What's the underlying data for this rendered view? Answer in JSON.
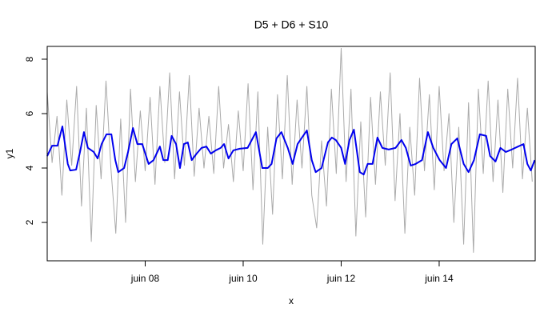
{
  "chart_data": {
    "type": "line",
    "title": "D5 + D6 + S10",
    "x_label": "x",
    "y_label": "y1",
    "xlim": [
      6.0,
      15.96
    ],
    "ylim": [
      0.59,
      8.47
    ],
    "xticks": [
      {
        "value": 8,
        "label": "juin 08"
      },
      {
        "value": 10,
        "label": "juin 10"
      },
      {
        "value": 12,
        "label": "juin 12"
      },
      {
        "value": 14,
        "label": "juin 14"
      }
    ],
    "yticks": [
      2,
      4,
      6,
      8
    ],
    "series": [
      {
        "color": "#aaaaaa",
        "width": 1,
        "x": [
          6.0,
          6.1,
          6.2,
          6.3,
          6.4,
          6.5,
          6.6,
          6.7,
          6.8,
          6.9,
          7.0,
          7.1,
          7.2,
          7.3,
          7.4,
          7.5,
          7.6,
          7.7,
          7.8,
          7.9,
          8.0,
          8.1,
          8.2,
          8.3,
          8.4,
          8.5,
          8.6,
          8.7,
          8.8,
          8.9,
          9.0,
          9.1,
          9.2,
          9.3,
          9.4,
          9.5,
          9.6,
          9.7,
          9.8,
          9.9,
          10.0,
          10.1,
          10.2,
          10.3,
          10.4,
          10.5,
          10.6,
          10.7,
          10.8,
          10.9,
          11.0,
          11.1,
          11.2,
          11.3,
          11.4,
          11.5,
          11.6,
          11.7,
          11.8,
          11.9,
          12.0,
          12.1,
          12.2,
          12.3,
          12.4,
          12.5,
          12.6,
          12.7,
          12.8,
          12.9,
          13.0,
          13.1,
          13.2,
          13.3,
          13.4,
          13.5,
          13.6,
          13.7,
          13.8,
          13.9,
          14.0,
          14.1,
          14.2,
          14.3,
          14.4,
          14.5,
          14.6,
          14.7,
          14.8,
          14.9,
          15.0,
          15.1,
          15.2,
          15.3,
          15.4,
          15.5,
          15.6,
          15.7,
          15.8,
          15.9
        ],
        "values": [
          6.8,
          4.2,
          5.9,
          3.0,
          6.5,
          4.1,
          7.0,
          2.6,
          6.2,
          1.3,
          6.3,
          3.6,
          7.2,
          4.0,
          1.6,
          5.8,
          2.0,
          6.9,
          3.5,
          6.1,
          3.9,
          6.6,
          3.4,
          7.0,
          4.2,
          7.5,
          3.6,
          6.8,
          4.1,
          7.4,
          3.7,
          6.2,
          4.0,
          5.9,
          3.8,
          7.0,
          4.0,
          5.6,
          3.5,
          6.1,
          3.9,
          7.1,
          3.2,
          6.8,
          1.2,
          5.5,
          2.3,
          6.7,
          3.6,
          7.4,
          3.4,
          6.5,
          4.0,
          7.0,
          3.0,
          1.8,
          5.0,
          2.6,
          6.9,
          3.8,
          8.4,
          3.5,
          6.9,
          1.5,
          5.7,
          2.2,
          6.6,
          3.4,
          6.8,
          4.1,
          7.5,
          2.8,
          6.0,
          1.6,
          5.5,
          3.0,
          7.3,
          3.9,
          6.7,
          3.2,
          7.0,
          3.9,
          6.0,
          2.0,
          5.5,
          1.2,
          6.4,
          0.9,
          6.9,
          3.8,
          7.2,
          3.5,
          6.5,
          3.1,
          6.9,
          4.0,
          7.3,
          3.6,
          6.2,
          3.5
        ]
      },
      {
        "color": "#0000ee",
        "width": 2,
        "x": [
          6.0,
          6.1,
          6.21,
          6.31,
          6.42,
          6.47,
          6.59,
          6.67,
          6.75,
          6.83,
          6.95,
          7.03,
          7.11,
          7.21,
          7.31,
          7.39,
          7.45,
          7.57,
          7.65,
          7.75,
          7.84,
          7.94,
          8.07,
          8.17,
          8.3,
          8.37,
          8.46,
          8.54,
          8.63,
          8.71,
          8.79,
          8.87,
          8.95,
          9.05,
          9.15,
          9.25,
          9.34,
          9.44,
          9.54,
          9.61,
          9.7,
          9.8,
          9.93,
          10.09,
          10.26,
          10.39,
          10.5,
          10.58,
          10.68,
          10.78,
          10.91,
          11.01,
          11.11,
          11.2,
          11.3,
          11.4,
          11.48,
          11.6,
          11.73,
          11.81,
          11.89,
          12.0,
          12.08,
          12.17,
          12.26,
          12.38,
          12.46,
          12.54,
          12.64,
          12.74,
          12.84,
          12.97,
          13.11,
          13.23,
          13.32,
          13.42,
          13.52,
          13.65,
          13.77,
          13.88,
          14.01,
          14.14,
          14.25,
          14.37,
          14.5,
          14.6,
          14.71,
          14.83,
          14.96,
          15.04,
          15.15,
          15.25,
          15.36,
          15.48,
          15.61,
          15.72,
          15.8,
          15.87,
          15.95
        ],
        "values": [
          4.44,
          4.82,
          4.82,
          5.53,
          4.15,
          3.91,
          3.94,
          4.59,
          5.32,
          4.74,
          4.59,
          4.35,
          4.88,
          5.24,
          5.24,
          4.29,
          3.85,
          4.0,
          4.59,
          5.47,
          4.88,
          4.88,
          4.15,
          4.29,
          4.79,
          4.29,
          4.29,
          5.18,
          4.88,
          4.0,
          4.88,
          4.94,
          4.29,
          4.53,
          4.74,
          4.79,
          4.53,
          4.65,
          4.74,
          4.88,
          4.35,
          4.65,
          4.71,
          4.74,
          5.32,
          4.0,
          4.0,
          4.15,
          5.09,
          5.32,
          4.74,
          4.15,
          4.88,
          5.12,
          5.38,
          4.29,
          3.85,
          4.0,
          4.94,
          5.12,
          5.03,
          4.74,
          4.15,
          5.03,
          5.41,
          3.85,
          3.76,
          4.15,
          4.15,
          5.12,
          4.74,
          4.68,
          4.74,
          5.03,
          4.74,
          4.09,
          4.15,
          4.29,
          5.32,
          4.74,
          4.29,
          4.0,
          4.88,
          5.09,
          4.15,
          3.85,
          4.29,
          5.24,
          5.18,
          4.44,
          4.24,
          4.74,
          4.59,
          4.68,
          4.79,
          4.88,
          4.15,
          3.91,
          4.29
        ]
      }
    ]
  }
}
